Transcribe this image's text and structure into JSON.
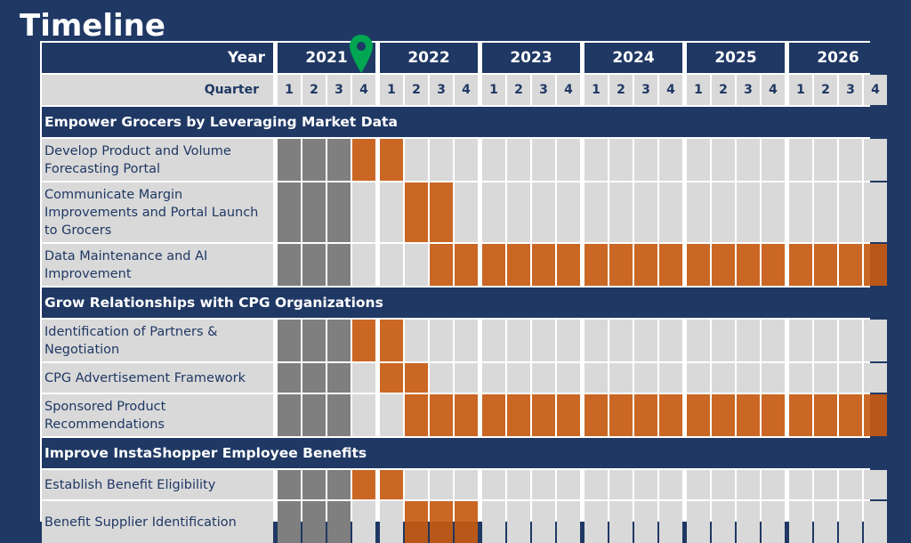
{
  "title": "Timeline",
  "header": {
    "year_label": "Year",
    "quarter_label": "Quarter",
    "years": [
      "2021",
      "2022",
      "2023",
      "2024",
      "2025",
      "2026"
    ],
    "quarters": [
      "1",
      "2",
      "3",
      "4"
    ]
  },
  "colors": {
    "background": "#1f3864",
    "completed": "#7f7f7f",
    "planned": "#c55a11",
    "empty": "#d9d9d9",
    "marker": "#00a651"
  },
  "current_marker": {
    "icon": "map-pin-icon",
    "year": "2021",
    "quarter": "4"
  },
  "rows": [
    {
      "type": "section",
      "label": "Empower Grocers by Leveraging Market Data"
    },
    {
      "type": "task",
      "label": "Develop Product and Volume Forecasting Portal",
      "done": [
        0,
        3
      ],
      "planned": [
        [
          3,
          5
        ]
      ]
    },
    {
      "type": "task",
      "label": "Communicate Margin Improvements and Portal Launch to Grocers",
      "done": [
        0,
        3
      ],
      "planned": [
        [
          5,
          7
        ]
      ]
    },
    {
      "type": "task",
      "label": "Data Maintenance and AI Improvement",
      "done": [
        0,
        3
      ],
      "planned": [
        [
          6,
          24
        ]
      ]
    },
    {
      "type": "section",
      "label": "Grow Relationships with CPG Organizations"
    },
    {
      "type": "task",
      "label": "Identification of Partners & Negotiation",
      "done": [
        0,
        3
      ],
      "planned": [
        [
          3,
          5
        ]
      ]
    },
    {
      "type": "task",
      "label": "CPG Advertisement Framework",
      "done": [
        0,
        3
      ],
      "planned": [
        [
          4,
          6
        ]
      ]
    },
    {
      "type": "task",
      "label": "Sponsored Product Recommendations",
      "done": [
        0,
        3
      ],
      "planned": [
        [
          5,
          24
        ]
      ]
    },
    {
      "type": "section",
      "label": "Improve InstaShopper Employee Benefits"
    },
    {
      "type": "task",
      "label": "Establish Benefit Eligibility",
      "done": [
        0,
        3
      ],
      "planned": [
        [
          3,
          5
        ]
      ]
    },
    {
      "type": "task",
      "label": "Benefit Supplier Identification",
      "done": [
        0,
        3
      ],
      "planned": [
        [
          5,
          8
        ]
      ]
    }
  ]
}
